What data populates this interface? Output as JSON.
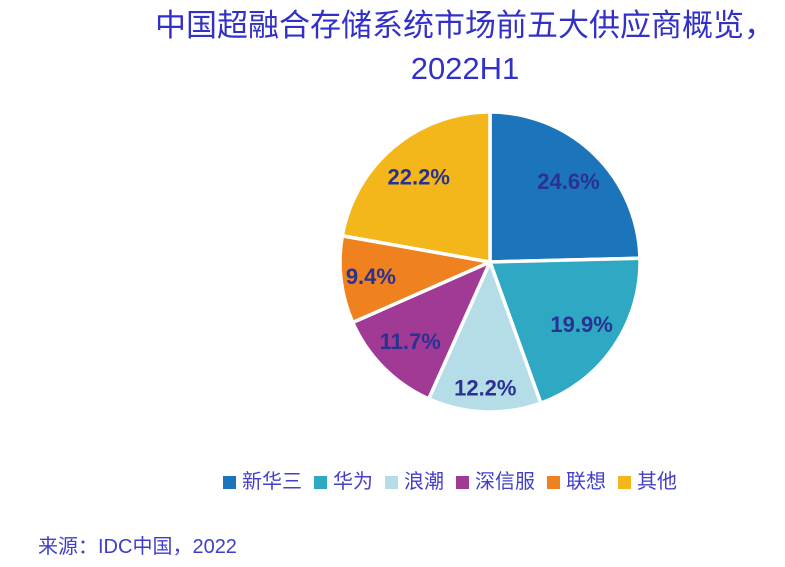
{
  "page": {
    "background": "#ffffff"
  },
  "title": {
    "line1": "中国超融合存储系统市场前五大供应商概览，",
    "line2": "2022H1",
    "color": "#3231C7"
  },
  "chart_data": {
    "type": "pie",
    "title": "中国超融合存储系统市场前五大供应商概览，2022H1",
    "categories": [
      "新华三",
      "华为",
      "浪潮",
      "深信服",
      "联想",
      "其他"
    ],
    "values": [
      24.6,
      19.9,
      12.2,
      11.7,
      9.4,
      22.2
    ],
    "data_labels": [
      "24.6%",
      "19.9%",
      "12.2%",
      "11.7%",
      "9.4%",
      "22.2%"
    ],
    "colors": [
      "#1C75BB",
      "#2EA8C3",
      "#B4DDE8",
      "#A13A95",
      "#F0811F",
      "#F3B71B"
    ],
    "start_angle_deg": 0,
    "direction": "clockwise",
    "units": "%",
    "label_color": "#2B3190",
    "label_radius_fractions": [
      0.75,
      0.74,
      0.84,
      0.75,
      0.8,
      0.74
    ],
    "slice_gap_stroke": "#FFFFFF",
    "legend_position": "bottom"
  },
  "legend": {
    "text_color": "#4340C8",
    "items": [
      {
        "label": "新华三",
        "color": "#1C75BB"
      },
      {
        "label": "华为",
        "color": "#2EA8C3"
      },
      {
        "label": "浪潮",
        "color": "#B4DDE8"
      },
      {
        "label": "深信服",
        "color": "#A13A95"
      },
      {
        "label": "联想",
        "color": "#F0811F"
      },
      {
        "label": "其他",
        "color": "#F3B71B"
      }
    ]
  },
  "source": {
    "text": "来源：IDC中国，2022",
    "color": "#403EC8"
  }
}
